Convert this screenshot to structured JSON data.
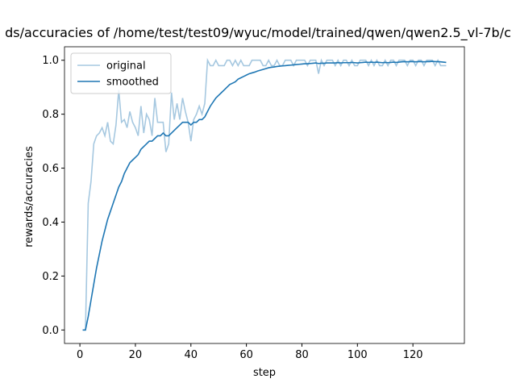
{
  "chart_data": {
    "type": "line",
    "title": "ds/accuracies of /home/test/test09/wyuc/model/trained/qwen/qwen2.5_vl-7b/c",
    "x_label": "step",
    "y_label": "rewards/accuracies",
    "x": [
      1,
      2,
      3,
      4,
      5,
      6,
      7,
      8,
      9,
      10,
      11,
      12,
      13,
      14,
      15,
      16,
      17,
      18,
      19,
      20,
      21,
      22,
      23,
      24,
      25,
      26,
      27,
      28,
      29,
      30,
      31,
      32,
      33,
      34,
      35,
      36,
      37,
      38,
      39,
      40,
      41,
      42,
      43,
      44,
      45,
      46,
      47,
      48,
      49,
      50,
      51,
      52,
      53,
      54,
      55,
      56,
      57,
      58,
      59,
      60,
      61,
      62,
      63,
      64,
      65,
      66,
      67,
      68,
      69,
      70,
      71,
      72,
      73,
      74,
      75,
      76,
      77,
      78,
      79,
      80,
      81,
      82,
      83,
      84,
      85,
      86,
      87,
      88,
      89,
      90,
      91,
      92,
      93,
      94,
      95,
      96,
      97,
      98,
      99,
      100,
      101,
      102,
      103,
      104,
      105,
      106,
      107,
      108,
      109,
      110,
      111,
      112,
      113,
      114,
      115,
      116,
      117,
      118,
      119,
      120,
      121,
      122,
      123,
      124,
      125,
      126,
      127,
      128,
      129,
      130,
      131,
      132
    ],
    "series": [
      {
        "name": "original",
        "color": "#a6c8e0",
        "values": [
          0,
          0,
          0.47,
          0.55,
          0.69,
          0.72,
          0.73,
          0.75,
          0.72,
          0.77,
          0.7,
          0.69,
          0.76,
          0.89,
          0.77,
          0.78,
          0.75,
          0.81,
          0.77,
          0.75,
          0.72,
          0.83,
          0.73,
          0.8,
          0.78,
          0.72,
          0.86,
          0.77,
          0.77,
          0.77,
          0.66,
          0.69,
          0.88,
          0.78,
          0.84,
          0.78,
          0.86,
          0.81,
          0.77,
          0.7,
          0.78,
          0.8,
          0.83,
          0.8,
          0.84,
          1.0,
          0.98,
          0.98,
          1.0,
          0.98,
          0.98,
          0.98,
          1.0,
          1.0,
          0.98,
          1.0,
          0.98,
          1.0,
          0.98,
          0.98,
          0.98,
          1.0,
          1.0,
          1.0,
          1.0,
          0.98,
          0.98,
          1.0,
          0.98,
          0.98,
          1.0,
          0.98,
          0.98,
          1.0,
          1.0,
          1.0,
          0.98,
          1.0,
          1.0,
          1.0,
          1.0,
          0.98,
          1.0,
          1.0,
          1.0,
          0.95,
          1.0,
          0.98,
          1.0,
          1.0,
          1.0,
          0.98,
          1.0,
          0.98,
          1.0,
          1.0,
          0.98,
          1.0,
          0.98,
          0.98,
          1.0,
          1.0,
          1.0,
          0.98,
          1.0,
          0.98,
          1.0,
          0.98,
          0.98,
          1.0,
          0.98,
          1.0,
          1.0,
          0.98,
          1.0,
          1.0,
          1.0,
          0.98,
          1.0,
          1.0,
          0.98,
          1.0,
          1.0,
          0.98,
          1.0,
          1.0,
          1.0,
          0.98,
          1.0,
          0.98,
          0.98,
          0.98
        ]
      },
      {
        "name": "smoothed",
        "color": "#1f77b4",
        "values": [
          0,
          0,
          0.05,
          0.11,
          0.17,
          0.23,
          0.28,
          0.33,
          0.37,
          0.41,
          0.44,
          0.47,
          0.5,
          0.53,
          0.55,
          0.58,
          0.6,
          0.62,
          0.63,
          0.64,
          0.65,
          0.67,
          0.68,
          0.69,
          0.7,
          0.7,
          0.71,
          0.72,
          0.72,
          0.73,
          0.72,
          0.72,
          0.73,
          0.74,
          0.75,
          0.76,
          0.77,
          0.77,
          0.77,
          0.76,
          0.77,
          0.77,
          0.78,
          0.78,
          0.79,
          0.81,
          0.83,
          0.845,
          0.86,
          0.87,
          0.88,
          0.89,
          0.9,
          0.91,
          0.915,
          0.92,
          0.93,
          0.935,
          0.94,
          0.945,
          0.95,
          0.953,
          0.956,
          0.96,
          0.963,
          0.966,
          0.969,
          0.972,
          0.974,
          0.975,
          0.977,
          0.978,
          0.979,
          0.98,
          0.981,
          0.982,
          0.983,
          0.984,
          0.985,
          0.986,
          0.987,
          0.987,
          0.988,
          0.989,
          0.99,
          0.988,
          0.989,
          0.989,
          0.99,
          0.99,
          0.99,
          0.99,
          0.991,
          0.99,
          0.991,
          0.991,
          0.991,
          0.992,
          0.991,
          0.99,
          0.991,
          0.992,
          0.993,
          0.992,
          0.993,
          0.992,
          0.993,
          0.992,
          0.991,
          0.992,
          0.991,
          0.992,
          0.993,
          0.992,
          0.993,
          0.994,
          0.995,
          0.994,
          0.995,
          0.995,
          0.994,
          0.995,
          0.995,
          0.994,
          0.995,
          0.995,
          0.996,
          0.995,
          0.995,
          0.994,
          0.993,
          0.992
        ]
      }
    ],
    "xlim": [
      -5.55,
      138.55
    ],
    "ylim": [
      -0.05,
      1.05
    ],
    "xticks": [
      0,
      20,
      40,
      60,
      80,
      100,
      120
    ],
    "yticks": [
      {
        "value": 0,
        "label": "0.0"
      },
      0.2,
      0.4,
      0.6,
      0.8,
      {
        "value": 1,
        "label": "1.0"
      }
    ],
    "grid": false,
    "legend": "upper left"
  }
}
